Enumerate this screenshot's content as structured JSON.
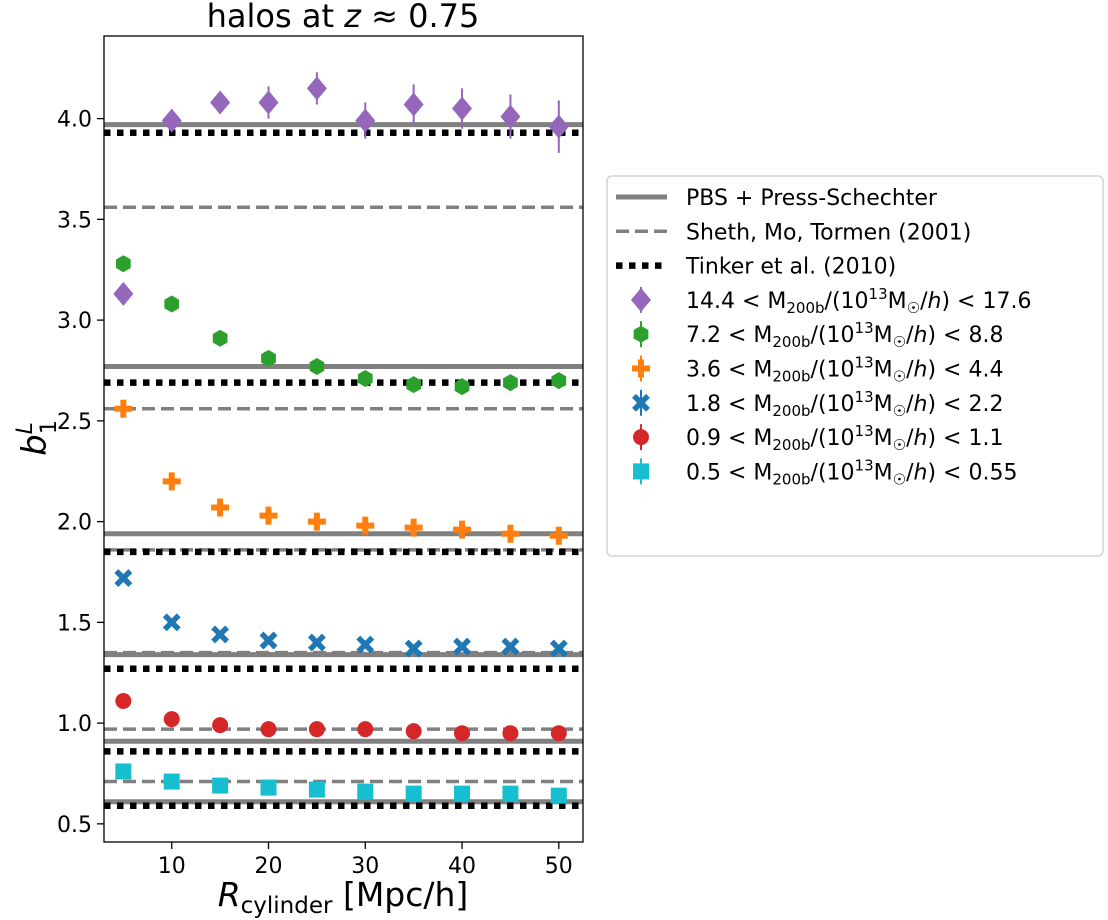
{
  "chart_data": {
    "type": "scatter",
    "title": {
      "pre": "halos at ",
      "var": "z",
      "post": " ≈ 0.75"
    },
    "xlabel": {
      "var": "R",
      "sub": "cylinder",
      "post": " [Mpc/h]"
    },
    "ylabel": {
      "var": "b",
      "sup": "L",
      "sub": "1"
    },
    "xlim": [
      3,
      52.5
    ],
    "ylim": [
      0.41,
      4.41
    ],
    "x_ticks": [
      10,
      20,
      30,
      40,
      50
    ],
    "y_ticks": [
      0.5,
      1.0,
      1.5,
      2.0,
      2.5,
      3.0,
      3.5,
      4.0
    ],
    "grid": false,
    "legend_position": "outside-right",
    "reference_lines": [
      {
        "name": "PBS + Press-Schechter",
        "style": "solid",
        "color": "#808080",
        "values": [
          3.97,
          2.77,
          1.94,
          1.34,
          0.91,
          0.61
        ]
      },
      {
        "name": "Sheth, Mo, Tormen (2001)",
        "style": "dashed",
        "color": "#808080",
        "values": [
          3.56,
          2.56,
          1.86,
          1.35,
          0.97,
          0.71
        ]
      },
      {
        "name": "Tinker et al. (2010)",
        "style": "dotted",
        "color": "#000000",
        "values": [
          3.93,
          2.69,
          1.85,
          1.27,
          0.86,
          0.59
        ]
      }
    ],
    "series": [
      {
        "name": "14.4 < M200b/(10^13 M☉/h) < 17.6",
        "label": {
          "lo": "14.4",
          "hi": "17.6"
        },
        "marker": "diamond",
        "color": "#9467bd",
        "x": [
          5,
          10,
          15,
          20,
          25,
          30,
          35,
          40,
          45,
          50
        ],
        "y": [
          3.13,
          3.99,
          4.08,
          4.08,
          4.15,
          3.99,
          4.07,
          4.05,
          4.01,
          3.96
        ],
        "err": [
          0.02,
          0.04,
          0.05,
          0.08,
          0.08,
          0.09,
          0.1,
          0.1,
          0.11,
          0.13
        ]
      },
      {
        "name": "7.2 < M200b/(10^13 M☉/h) < 8.8",
        "label": {
          "lo": "7.2",
          "hi": "8.8"
        },
        "marker": "hexagon",
        "color": "#2ca02c",
        "x": [
          5,
          10,
          15,
          20,
          25,
          30,
          35,
          40,
          45,
          50
        ],
        "y": [
          3.28,
          3.08,
          2.91,
          2.81,
          2.77,
          2.71,
          2.68,
          2.67,
          2.69,
          2.7
        ],
        "err": [
          0.01,
          0.01,
          0.02,
          0.02,
          0.02,
          0.03,
          0.03,
          0.04,
          0.04,
          0.04
        ]
      },
      {
        "name": "3.6 < M200b/(10^13 M☉/h) < 4.4",
        "label": {
          "lo": "3.6",
          "hi": "4.4"
        },
        "marker": "plus",
        "color": "#ff7f0e",
        "x": [
          5,
          10,
          15,
          20,
          25,
          30,
          35,
          40,
          45,
          50
        ],
        "y": [
          2.56,
          2.2,
          2.07,
          2.03,
          2.0,
          1.98,
          1.97,
          1.96,
          1.94,
          1.93
        ],
        "err": [
          0.01,
          0.01,
          0.01,
          0.01,
          0.01,
          0.02,
          0.02,
          0.02,
          0.02,
          0.02
        ]
      },
      {
        "name": "1.8 < M200b/(10^13 M☉/h) < 2.2",
        "label": {
          "lo": "1.8",
          "hi": "2.2"
        },
        "marker": "x",
        "color": "#1f77b4",
        "x": [
          5,
          10,
          15,
          20,
          25,
          30,
          35,
          40,
          45,
          50
        ],
        "y": [
          1.72,
          1.5,
          1.44,
          1.41,
          1.4,
          1.39,
          1.37,
          1.38,
          1.38,
          1.37
        ],
        "err": [
          0.01,
          0.01,
          0.01,
          0.01,
          0.01,
          0.01,
          0.01,
          0.01,
          0.01,
          0.01
        ]
      },
      {
        "name": "0.9 < M200b/(10^13 M☉/h) < 1.1",
        "label": {
          "lo": "0.9",
          "hi": "1.1"
        },
        "marker": "circle",
        "color": "#d62728",
        "x": [
          5,
          10,
          15,
          20,
          25,
          30,
          35,
          40,
          45,
          50
        ],
        "y": [
          1.11,
          1.02,
          0.99,
          0.97,
          0.97,
          0.97,
          0.96,
          0.95,
          0.95,
          0.95
        ],
        "err": [
          0.005,
          0.005,
          0.005,
          0.005,
          0.005,
          0.005,
          0.005,
          0.005,
          0.005,
          0.005
        ]
      },
      {
        "name": "0.5 < M200b/(10^13 M☉/h) < 0.55",
        "label": {
          "lo": "0.5",
          "hi": "0.55"
        },
        "marker": "square",
        "color": "#17becf",
        "x": [
          5,
          10,
          15,
          20,
          25,
          30,
          35,
          40,
          45,
          50
        ],
        "y": [
          0.76,
          0.71,
          0.69,
          0.68,
          0.67,
          0.66,
          0.65,
          0.65,
          0.65,
          0.64
        ],
        "err": [
          0.005,
          0.005,
          0.005,
          0.005,
          0.005,
          0.005,
          0.005,
          0.005,
          0.005,
          0.005
        ]
      }
    ]
  }
}
